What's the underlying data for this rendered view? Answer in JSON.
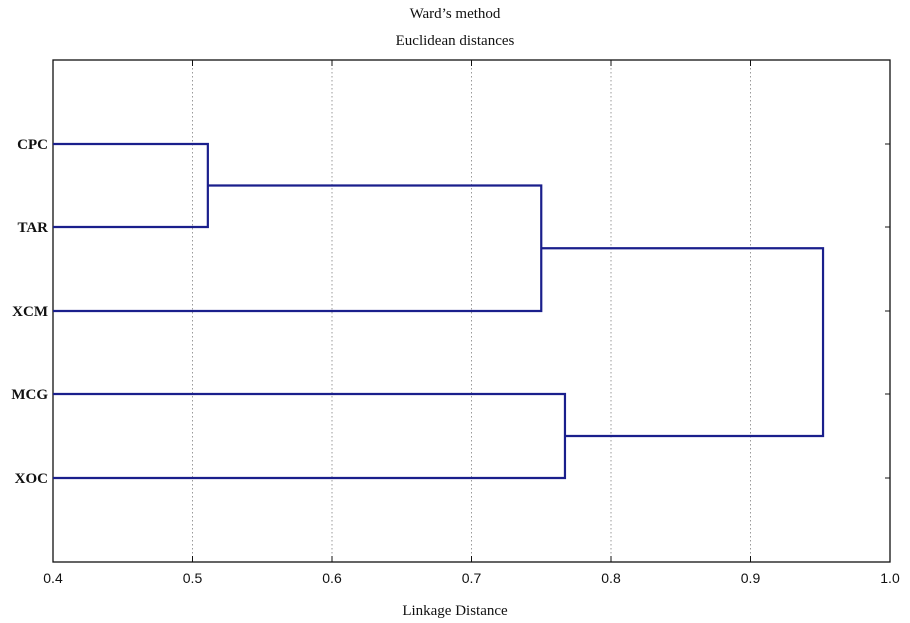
{
  "chart_data": {
    "type": "dendrogram",
    "title": "Ward’s method",
    "subtitle": "Euclidean distances",
    "xlabel": "Linkage Distance",
    "ylabel": "",
    "xlim": [
      0.4,
      1.0
    ],
    "x_ticks": [
      "0.4",
      "0.5",
      "0.6",
      "0.7",
      "0.8",
      "0.9",
      "1.0"
    ],
    "grid": "vertical dotted",
    "leaves": [
      "CPC",
      "TAR",
      "XCM",
      "MCG",
      "XOC"
    ],
    "merges": [
      {
        "a": "CPC",
        "b": "TAR",
        "distance": 0.511
      },
      {
        "a": "CPC+TAR",
        "b": "XCM",
        "distance": 0.75
      },
      {
        "a": "MCG",
        "b": "XOC",
        "distance": 0.767
      },
      {
        "a": "CPC+TAR+XCM",
        "b": "MCG+XOC",
        "distance": 0.952
      }
    ],
    "colors": {
      "line": "#1a1f8c",
      "grid": "#9a9a9a"
    }
  }
}
